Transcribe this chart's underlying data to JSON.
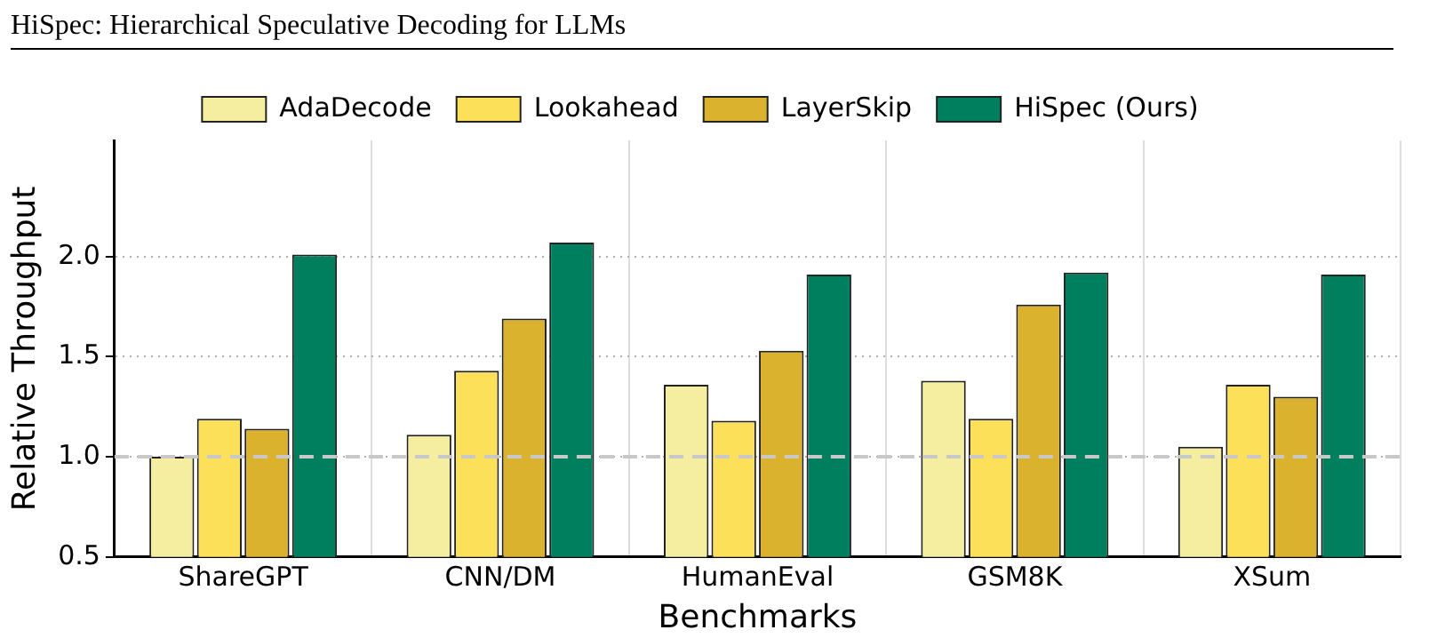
{
  "chart_data": {
    "type": "bar",
    "xlabel": "Benchmarks",
    "ylabel": "Relative Throughput",
    "annotations": [
      "HiSpec: Hierarchical Speculative Decoding for LLMs"
    ],
    "categories": [
      "ShareGPT",
      "CNN/DM",
      "HumanEval",
      "GSM8K",
      "XSum"
    ],
    "series": [
      {
        "name": "AdaDecode",
        "color": "#f5eda0",
        "values": [
          1.0,
          1.11,
          1.36,
          1.38,
          1.05
        ]
      },
      {
        "name": "Lookahead",
        "color": "#fde05a",
        "values": [
          1.19,
          1.43,
          1.18,
          1.19,
          1.36
        ]
      },
      {
        "name": "LayerSkip",
        "color": "#dab22e",
        "values": [
          1.14,
          1.69,
          1.53,
          1.76,
          1.3
        ]
      },
      {
        "name": "HiSpec (Ours)",
        "color": "#007f5f",
        "values": [
          2.01,
          2.07,
          1.91,
          1.92,
          1.91
        ]
      }
    ],
    "ylim": [
      0.5,
      2.58
    ],
    "yticks": [
      {
        "value": 0.5,
        "label": "0.5"
      },
      {
        "value": 1,
        "label": "1.0"
      },
      {
        "value": 1.5,
        "label": "1.5"
      },
      {
        "value": 2,
        "label": "2.0"
      }
    ],
    "ref_lines": [
      {
        "axis": "y",
        "value": 1,
        "color": "#c8c8c8",
        "line_style": "dashed"
      }
    ],
    "grid": true,
    "legend": "top"
  }
}
